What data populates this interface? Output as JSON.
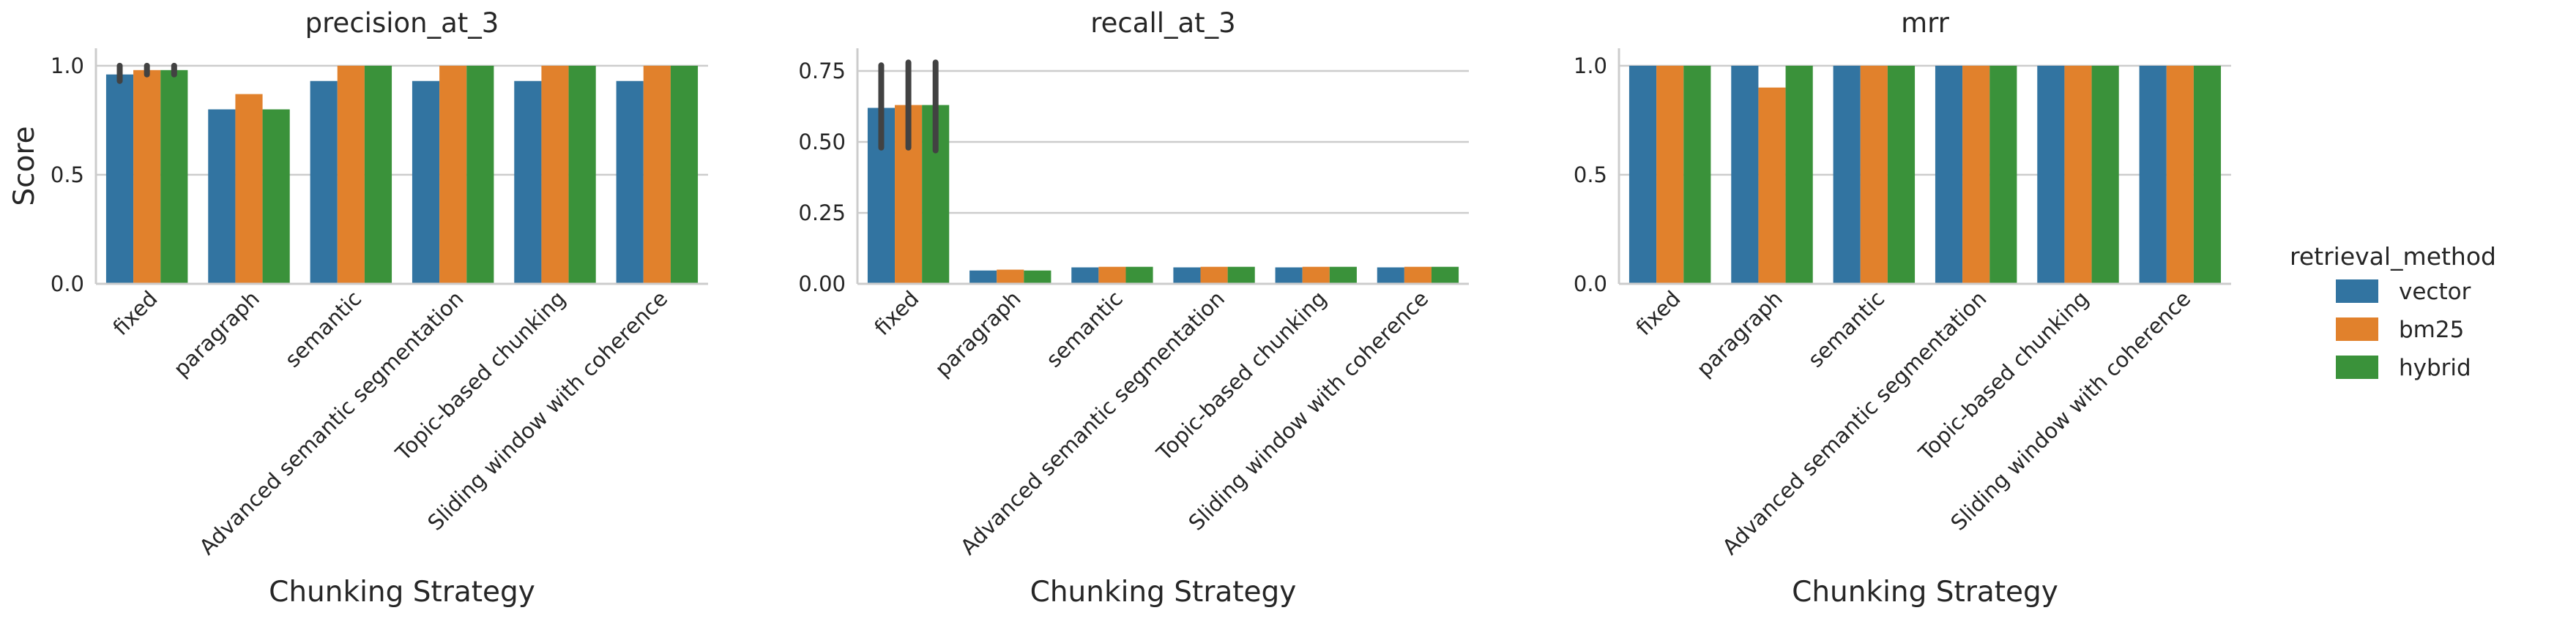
{
  "chart_data": [
    {
      "type": "bar",
      "title": "precision_at_3",
      "xlabel": "Chunking Strategy",
      "ylabel": "Score",
      "ylim": [
        0,
        1.08
      ],
      "yticks": [
        0.0,
        0.5,
        1.0
      ],
      "ytick_labels": [
        "0.0",
        "0.5",
        "1.0"
      ],
      "categories": [
        "fixed",
        "paragraph",
        "semantic",
        "Advanced semantic segmentation",
        "Topic-based chunking",
        "Sliding window with coherence"
      ],
      "series": [
        {
          "name": "vector",
          "values": [
            0.96,
            0.8,
            0.93,
            0.93,
            0.93,
            0.93
          ]
        },
        {
          "name": "bm25",
          "values": [
            0.98,
            0.87,
            1.0,
            1.0,
            1.0,
            1.0
          ]
        },
        {
          "name": "hybrid",
          "values": [
            0.98,
            0.8,
            1.0,
            1.0,
            1.0,
            1.0
          ]
        }
      ],
      "error_bars": [
        {
          "series": "vector",
          "category": "fixed",
          "low": 0.93,
          "high": 1.0
        },
        {
          "series": "bm25",
          "category": "fixed",
          "low": 0.96,
          "high": 1.0
        },
        {
          "series": "hybrid",
          "category": "fixed",
          "low": 0.96,
          "high": 1.0
        }
      ],
      "grid": true
    },
    {
      "type": "bar",
      "title": "recall_at_3",
      "xlabel": "Chunking Strategy",
      "ylabel": "",
      "ylim": [
        0,
        0.83
      ],
      "yticks": [
        0.0,
        0.25,
        0.5,
        0.75
      ],
      "ytick_labels": [
        "0.00",
        "0.25",
        "0.50",
        "0.75"
      ],
      "categories": [
        "fixed",
        "paragraph",
        "semantic",
        "Advanced semantic segmentation",
        "Topic-based chunking",
        "Sliding window with coherence"
      ],
      "series": [
        {
          "name": "vector",
          "values": [
            0.62,
            0.047,
            0.058,
            0.058,
            0.058,
            0.058
          ]
        },
        {
          "name": "bm25",
          "values": [
            0.63,
            0.05,
            0.06,
            0.06,
            0.06,
            0.06
          ]
        },
        {
          "name": "hybrid",
          "values": [
            0.63,
            0.047,
            0.06,
            0.06,
            0.06,
            0.06
          ]
        }
      ],
      "error_bars": [
        {
          "series": "vector",
          "category": "fixed",
          "low": 0.48,
          "high": 0.77
        },
        {
          "series": "bm25",
          "category": "fixed",
          "low": 0.48,
          "high": 0.78
        },
        {
          "series": "hybrid",
          "category": "fixed",
          "low": 0.47,
          "high": 0.78
        }
      ],
      "grid": true
    },
    {
      "type": "bar",
      "title": "mrr",
      "xlabel": "Chunking Strategy",
      "ylabel": "",
      "ylim": [
        0,
        1.08
      ],
      "yticks": [
        0.0,
        0.5,
        1.0
      ],
      "ytick_labels": [
        "0.0",
        "0.5",
        "1.0"
      ],
      "categories": [
        "fixed",
        "paragraph",
        "semantic",
        "Advanced semantic segmentation",
        "Topic-based chunking",
        "Sliding window with coherence"
      ],
      "series": [
        {
          "name": "vector",
          "values": [
            1.0,
            1.0,
            1.0,
            1.0,
            1.0,
            1.0
          ]
        },
        {
          "name": "bm25",
          "values": [
            1.0,
            0.9,
            1.0,
            1.0,
            1.0,
            1.0
          ]
        },
        {
          "name": "hybrid",
          "values": [
            1.0,
            1.0,
            1.0,
            1.0,
            1.0,
            1.0
          ]
        }
      ],
      "error_bars": [],
      "grid": true
    }
  ],
  "legend": {
    "title": "retrieval_method",
    "placement": "right",
    "items": [
      {
        "name": "vector",
        "color": "#3274a1"
      },
      {
        "name": "bm25",
        "color": "#e1812c"
      },
      {
        "name": "hybrid",
        "color": "#3a923a"
      }
    ]
  },
  "colors": {
    "vector": "#3274a1",
    "bm25": "#e1812c",
    "hybrid": "#3a923a",
    "grid": "#cccccc",
    "axis": "#cccccc",
    "errorbar": "#424242"
  }
}
